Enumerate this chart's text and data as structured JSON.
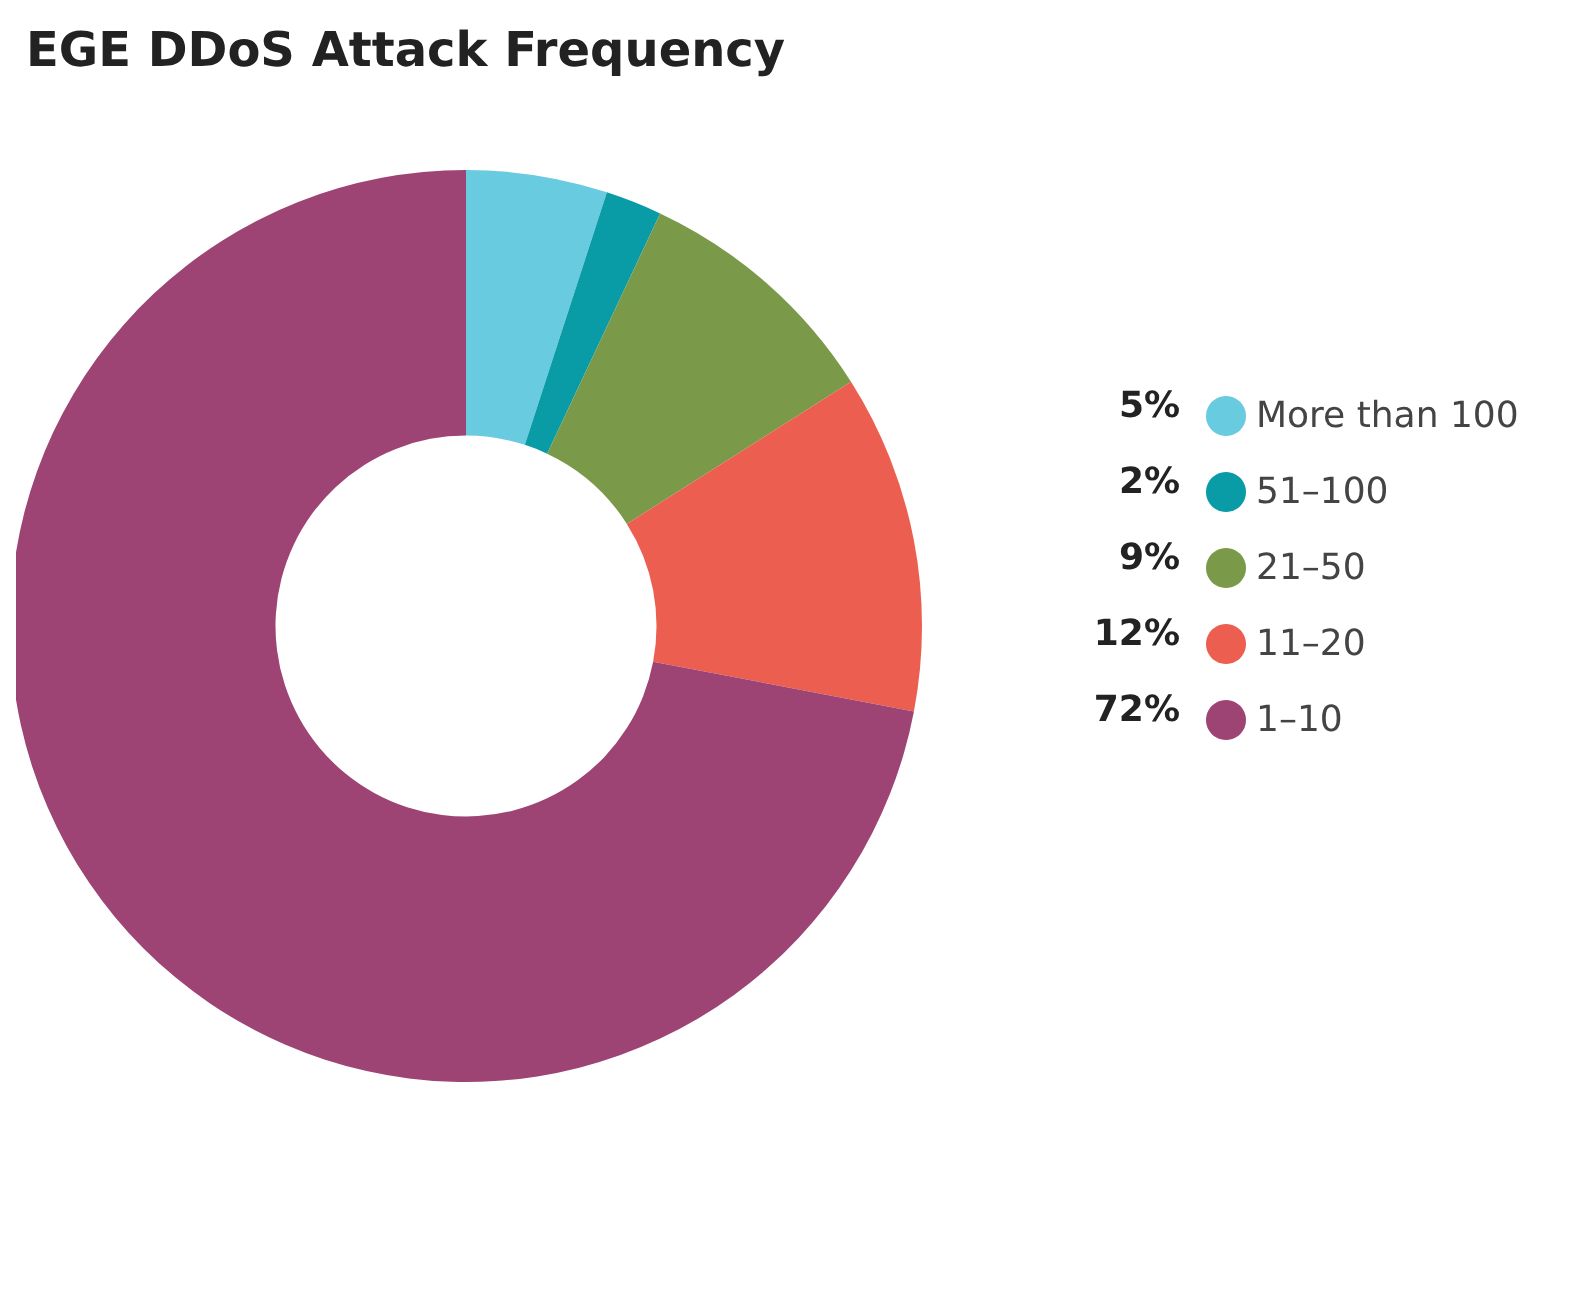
{
  "chart_data": {
    "type": "donut",
    "title": "EGE DDoS Attack Frequency",
    "categories": [
      "More than 100",
      "51–100",
      "21–50",
      "11–20",
      "1–10"
    ],
    "values": [
      5,
      2,
      9,
      12,
      72
    ],
    "value_labels": [
      "5%",
      "2%",
      "9%",
      "12%",
      "72%"
    ],
    "colors": [
      "#69cbe0",
      "#0a9ca6",
      "#7a9a4a",
      "#ec5f50",
      "#9d4474"
    ],
    "legend": "right"
  }
}
